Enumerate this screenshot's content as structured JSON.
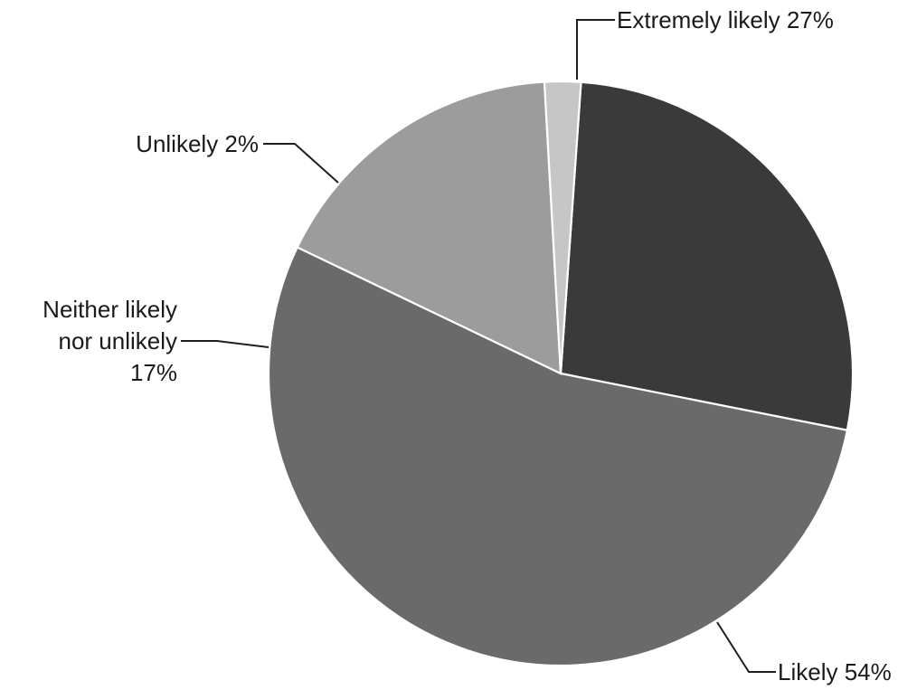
{
  "chart_data": {
    "type": "pie",
    "title": "",
    "start_angle_deg": 4,
    "direction": "clockwise",
    "slices": [
      {
        "label": "Extremely likely",
        "value": 27,
        "display": "Extremely likely 27%",
        "color": "#3a3a3a"
      },
      {
        "label": "Likely",
        "value": 54,
        "display": "Likely 54%",
        "color": "#6a6a6a"
      },
      {
        "label": "Neither likely nor unlikely",
        "value": 17,
        "lines": [
          "Neither likely",
          "nor unlikely",
          "17%"
        ],
        "color": "#9c9c9c"
      },
      {
        "label": "Unlikely",
        "value": 2,
        "display": "Unlikely 2%",
        "color": "#c6c6c6"
      }
    ]
  }
}
